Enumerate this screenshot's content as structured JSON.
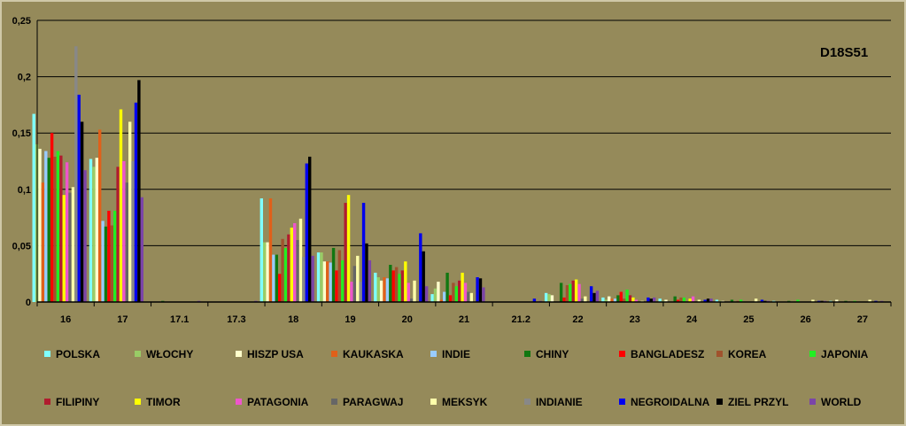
{
  "chart_data": {
    "type": "bar",
    "title": "",
    "annotation": "D18S51",
    "xlabel": "",
    "ylabel": "",
    "ylim": [
      0,
      0.25
    ],
    "yticks": [
      "0",
      "0,05",
      "0,1",
      "0,15",
      "0,2",
      "0,25"
    ],
    "grid": true,
    "legend_position": "bottom",
    "categories": [
      "16",
      "17",
      "17.1",
      "17.3",
      "18",
      "19",
      "20",
      "21",
      "21.2",
      "22",
      "23",
      "24",
      "25",
      "26",
      "27"
    ],
    "series": [
      {
        "name": "POLSKA",
        "color": "#7fffff",
        "values": [
          0.167,
          0.127,
          0,
          0,
          0.092,
          0.044,
          0.026,
          0.007,
          0,
          0.008,
          0.004,
          0.003,
          0.002,
          0.001,
          0.001
        ]
      },
      {
        "name": "WŁOCHY",
        "color": "#99cc66",
        "values": [
          0.14,
          0.12,
          0,
          0,
          0.053,
          0.044,
          0.022,
          0.012,
          0,
          0.007,
          0.002,
          0.001,
          0.001,
          0,
          0
        ]
      },
      {
        "name": "HISZP USA",
        "color": "#ffffcc",
        "values": [
          0.136,
          0.128,
          0,
          0,
          0.053,
          0.036,
          0.019,
          0.018,
          0,
          0.006,
          0.005,
          0.002,
          0.001,
          0,
          0.002
        ]
      },
      {
        "name": "KAUKASKA",
        "color": "#e0601a",
        "values": [
          0.106,
          0.153,
          0,
          0,
          0.092,
          0.036,
          0.022,
          0.002,
          0,
          0,
          0.003,
          0,
          0,
          0,
          0
        ]
      },
      {
        "name": "INDIE",
        "color": "#99ccff",
        "values": [
          0.134,
          0.072,
          0,
          0,
          0.042,
          0.035,
          0.021,
          0.009,
          0,
          0,
          0.003,
          0,
          0,
          0,
          0
        ]
      },
      {
        "name": "CHINY",
        "color": "#117711",
        "values": [
          0.128,
          0.067,
          0.001,
          0,
          0.042,
          0.048,
          0.033,
          0.026,
          0,
          0.017,
          0.006,
          0.005,
          0.002,
          0.001,
          0.001
        ]
      },
      {
        "name": "BANGLADESZ",
        "color": "#ff0000",
        "values": [
          0.15,
          0.081,
          0,
          0,
          0.025,
          0.028,
          0.028,
          0.006,
          0,
          0.004,
          0.009,
          0.002,
          0,
          0,
          0
        ]
      },
      {
        "name": "KOREA",
        "color": "#a0522d",
        "values": [
          0.129,
          0.068,
          0,
          0,
          0.056,
          0.046,
          0.031,
          0.017,
          0,
          0.015,
          0.003,
          0.004,
          0.001,
          0,
          0
        ]
      },
      {
        "name": "JAPONIA",
        "color": "#22ee22",
        "values": [
          0.134,
          0.081,
          0,
          0,
          0.048,
          0.037,
          0.025,
          0.014,
          0,
          0.016,
          0.011,
          0.004,
          0.002,
          0.002,
          0.001
        ]
      },
      {
        "name": "FILIPINY",
        "color": "#b01c2e",
        "values": [
          0.13,
          0.12,
          0,
          0,
          0.06,
          0.088,
          0.028,
          0.019,
          0,
          0.019,
          0.006,
          0,
          0,
          0,
          0
        ]
      },
      {
        "name": "TIMOR",
        "color": "#ffff00",
        "values": [
          0.095,
          0.171,
          0,
          0,
          0.066,
          0.095,
          0.036,
          0.026,
          0,
          0.02,
          0.004,
          0.003,
          0,
          0,
          0
        ]
      },
      {
        "name": "PATAGONIA",
        "color": "#ee55cc",
        "values": [
          0.124,
          0.125,
          0,
          0,
          0.07,
          0.018,
          0.017,
          0.017,
          0,
          0.016,
          0.002,
          0.005,
          0,
          0,
          0
        ]
      },
      {
        "name": "PARAGWAJ",
        "color": "#666666",
        "values": [
          0.097,
          0.106,
          0,
          0,
          0.055,
          0.032,
          0.003,
          0.009,
          0,
          0.003,
          0,
          0,
          0,
          0,
          0
        ]
      },
      {
        "name": "MEKSYK",
        "color": "#ffffaa",
        "values": [
          0.102,
          0.16,
          0,
          0,
          0.074,
          0.041,
          0.019,
          0.008,
          0,
          0.005,
          0.001,
          0.002,
          0.003,
          0.002,
          0.002
        ]
      },
      {
        "name": "INDIANIE",
        "color": "#888888",
        "values": [
          0.227,
          0.125,
          0,
          0,
          0.04,
          0.018,
          0,
          0,
          0,
          0,
          0,
          0,
          0,
          0,
          0
        ]
      },
      {
        "name": "NEGROIDALNA",
        "color": "#0000ee",
        "values": [
          0.184,
          0.177,
          0,
          0,
          0.123,
          0.088,
          0.061,
          0.022,
          0.003,
          0.014,
          0.004,
          0.002,
          0.002,
          0.001,
          0.001
        ]
      },
      {
        "name": "ZIEL PRZYL",
        "color": "#000000",
        "values": [
          0.16,
          0.197,
          0,
          0,
          0.129,
          0.052,
          0.045,
          0.021,
          0,
          0.008,
          0.003,
          0.003,
          0.001,
          0.001,
          0
        ]
      },
      {
        "name": "WORLD",
        "color": "#7b44a8",
        "values": [
          0.117,
          0.093,
          0.001,
          0.001,
          0.041,
          0.037,
          0.014,
          0.013,
          0.001,
          0.01,
          0.004,
          0.003,
          0.001,
          0.001,
          0.001
        ]
      }
    ]
  }
}
